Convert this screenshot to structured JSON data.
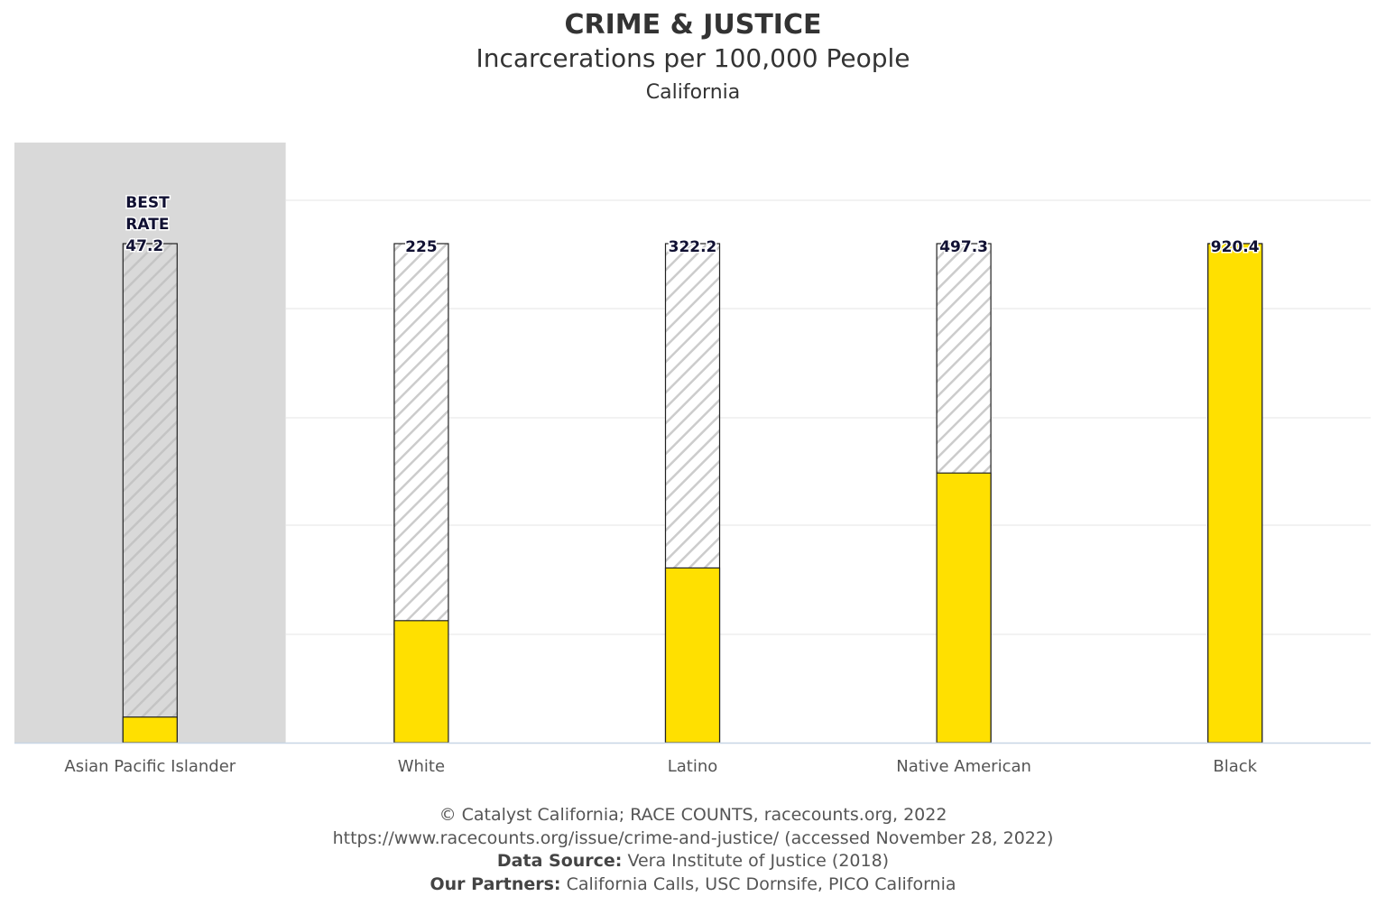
{
  "header": {
    "title": "CRIME & JUSTICE",
    "subtitle": "Incarcerations per 100,000 People",
    "location": "California"
  },
  "colors": {
    "bar_fill": "#FFE000",
    "highlight_band": "#D9D9D9",
    "hatch": "#CCCCCC",
    "bar_stroke": "#222222",
    "gridline": "#E6E6E6",
    "axis_line": "#C8D6E5"
  },
  "chart_data": {
    "type": "bar",
    "categories": [
      "Asian Pacific Islander",
      "White",
      "Latino",
      "Native American",
      "Black"
    ],
    "values": [
      47.2,
      225,
      322.2,
      497.3,
      920.4
    ],
    "value_labels": [
      "47.2",
      "225",
      "322.2",
      "497.3",
      "920.4"
    ],
    "best_category": "Asian Pacific Islander",
    "best_label_lines": [
      "BEST",
      "RATE"
    ],
    "reference_max": 920.4,
    "ylim": [
      0,
      1000
    ],
    "grid": true,
    "y_tick_labels_visible": false,
    "xlabel": "",
    "ylabel": ""
  },
  "footer": {
    "copyright": "© Catalyst California; RACE COUNTS, racecounts.org, 2022",
    "url": "https://www.racecounts.org/issue/crime-and-justice/ (accessed November 28, 2022)",
    "source_label": "Data Source:",
    "source_value": "Vera Institute of Justice (2018)",
    "partners_label": "Our Partners:",
    "partners_value": "California Calls, USC Dornsife, PICO California"
  }
}
